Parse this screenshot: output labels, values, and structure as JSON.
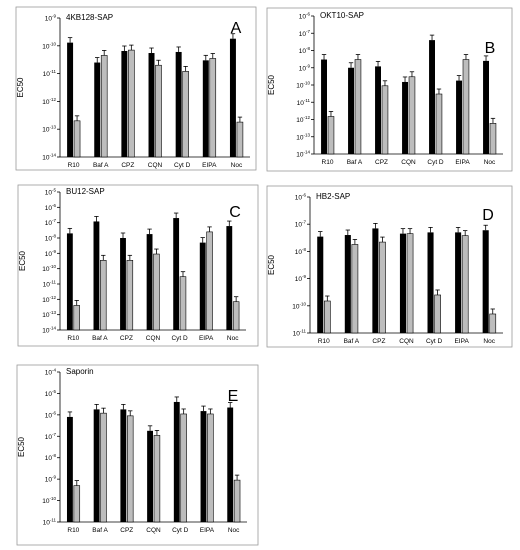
{
  "chart_data": [
    {
      "type": "bar",
      "title": "4KB128-SAP",
      "letter": "A",
      "ylabel": "EC50",
      "yscale": "log",
      "ylim": [
        1e-14,
        1e-09
      ],
      "categories": [
        "R10",
        "Baf A",
        "CPZ",
        "CQN",
        "Cyt D",
        "EIPA",
        "Noc"
      ],
      "series": [
        {
          "color": "#000000",
          "values": [
            1.3e-10,
            2.5e-11,
            6.5e-11,
            5.5e-11,
            6e-11,
            3e-11,
            1.8e-10
          ]
        },
        {
          "color": "#bdbdbd",
          "values": [
            2e-13,
            4.5e-11,
            7e-11,
            2e-11,
            1.2e-11,
            3.5e-11,
            1.8e-13
          ]
        }
      ]
    },
    {
      "type": "bar",
      "title": "OKT10-SAP",
      "letter": "B",
      "ylabel": "EC50",
      "yscale": "log",
      "ylim": [
        1e-14,
        1e-06
      ],
      "categories": [
        "R10",
        "Baf A",
        "CPZ",
        "CQN",
        "Cyt D",
        "EIPA",
        "Noc"
      ],
      "series": [
        {
          "color": "#000000",
          "values": [
            3e-09,
            1e-09,
            1.2e-09,
            1.5e-10,
            4e-08,
            1.8e-10,
            2.5e-09
          ]
        },
        {
          "color": "#bdbdbd",
          "values": [
            1.5e-12,
            3e-09,
            9e-11,
            3e-10,
            3e-11,
            3e-09,
            6e-13
          ]
        }
      ]
    },
    {
      "type": "bar",
      "title": "BU12-SAP",
      "letter": "C",
      "ylabel": "EC50",
      "yscale": "log",
      "ylim": [
        1e-14,
        1e-05
      ],
      "categories": [
        "R10",
        "Baf A",
        "CPZ",
        "CQN",
        "Cyt D",
        "EIPA",
        "Noc"
      ],
      "series": [
        {
          "color": "#000000",
          "values": [
            2e-08,
            1.2e-07,
            1e-08,
            1.8e-08,
            2e-07,
            5e-09,
            6e-08
          ]
        },
        {
          "color": "#bdbdbd",
          "values": [
            4e-13,
            3.5e-10,
            3.5e-10,
            9e-10,
            3e-11,
            2.5e-08,
            7e-13
          ]
        }
      ]
    },
    {
      "type": "bar",
      "title": "HB2-SAP",
      "letter": "D",
      "ylabel": "EC50",
      "yscale": "log",
      "ylim": [
        1e-11,
        1e-06
      ],
      "categories": [
        "R10",
        "Baf A",
        "CPZ",
        "CQN",
        "Cyt D",
        "EIPA",
        "Noc"
      ],
      "series": [
        {
          "color": "#000000",
          "values": [
            3.5e-08,
            4e-08,
            7e-08,
            4.5e-08,
            5e-08,
            5e-08,
            6e-08
          ]
        },
        {
          "color": "#bdbdbd",
          "values": [
            1.5e-10,
            1.8e-08,
            2.2e-08,
            4.5e-08,
            2.5e-10,
            3.8e-08,
            5e-11
          ]
        }
      ]
    },
    {
      "type": "bar",
      "title": "Saporin",
      "letter": "E",
      "ylabel": "EC50",
      "yscale": "log",
      "ylim": [
        1e-11,
        0.0001
      ],
      "categories": [
        "R10",
        "Baf A",
        "CPZ",
        "CQN",
        "Cyt D",
        "EIPA",
        "Noc"
      ],
      "series": [
        {
          "color": "#000000",
          "values": [
            8e-07,
            1.8e-06,
            1.8e-06,
            1.8e-07,
            4e-06,
            1.5e-06,
            2.2e-06
          ]
        },
        {
          "color": "#bdbdbd",
          "values": [
            5e-10,
            1.2e-06,
            9e-07,
            1.1e-07,
            1.1e-06,
            1.1e-06,
            9e-10
          ]
        }
      ]
    }
  ]
}
